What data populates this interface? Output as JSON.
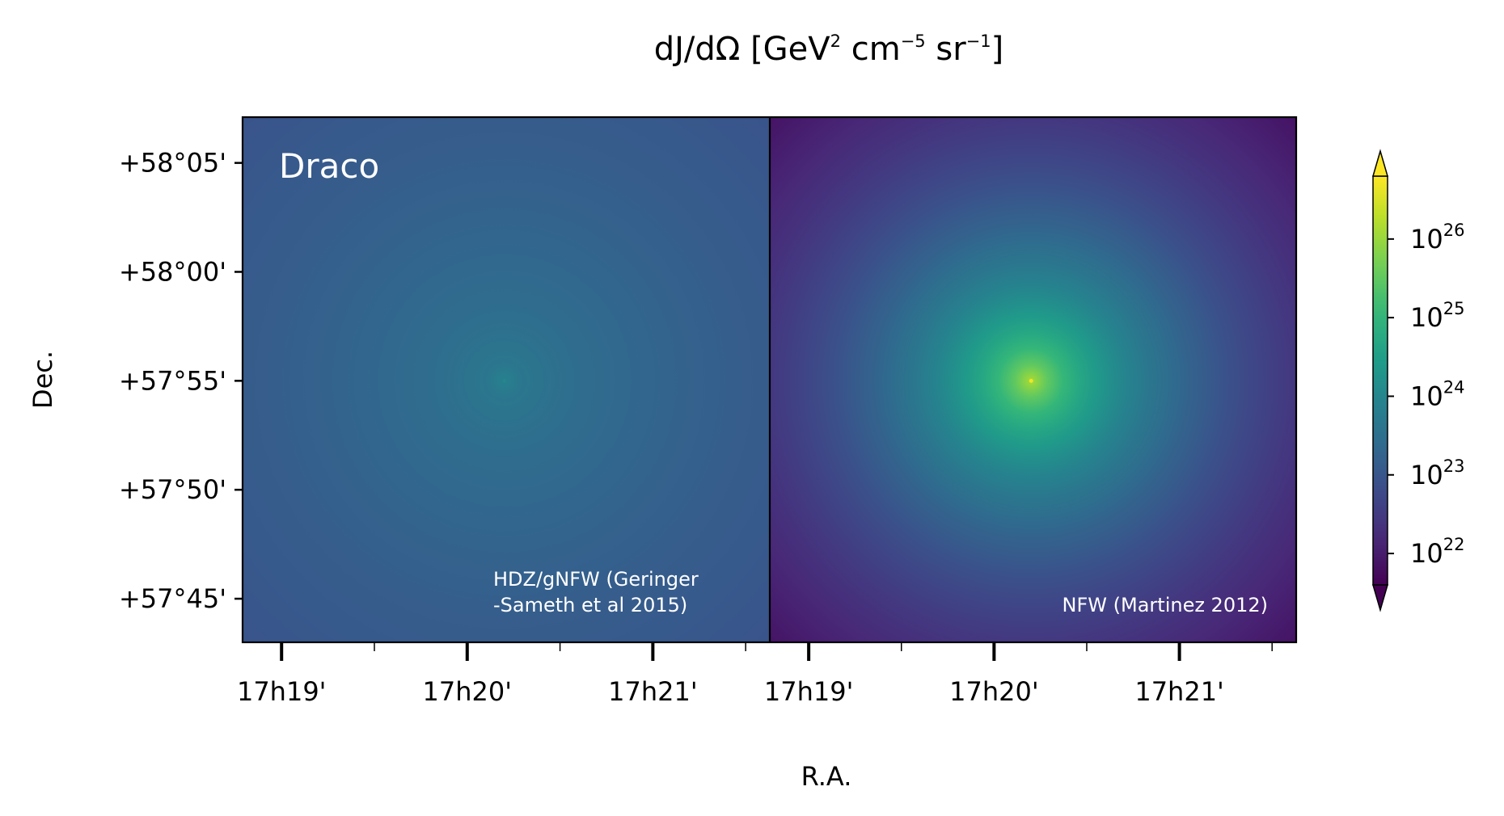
{
  "chart_data": {
    "type": "heatmap",
    "title": {
      "main": "dJ/dΩ  [GeV",
      "sup1": "2",
      "mid": " cm",
      "sup2": "−5",
      "mid2": " sr",
      "sup3": "−1",
      "end": "]"
    },
    "xlabel": "R.A.",
    "ylabel": "Dec.",
    "colormap": "viridis",
    "color_scale": "log",
    "colorbar": {
      "range_log10": [
        21.6,
        26.8
      ],
      "extend": "both",
      "ticks": [
        {
          "log10": 22,
          "base": "10",
          "exp": "22"
        },
        {
          "log10": 23,
          "base": "10",
          "exp": "23"
        },
        {
          "log10": 24,
          "base": "10",
          "exp": "24"
        },
        {
          "log10": 25,
          "base": "10",
          "exp": "25"
        },
        {
          "log10": 26,
          "base": "10",
          "exp": "26"
        }
      ]
    },
    "y_ticks_arcmin": [
      {
        "value": 3485,
        "label": "+58$^\\circ$05'"
      },
      {
        "value": 3480,
        "label": "+58$^\\circ$00'"
      },
      {
        "value": 3475,
        "label": "+57$^\\circ$55'"
      },
      {
        "value": 3470,
        "label": "+57$^\\circ$50'"
      },
      {
        "value": 3465,
        "label": "+57$^\\circ$45'"
      }
    ],
    "y_tick_text": [
      "+58°05'",
      "+58°00'",
      "+57°55'",
      "+57°50'",
      "+57°45'"
    ],
    "ylim_arcmin": [
      3463.0,
      3487.1
    ],
    "x_ticks_min": [
      {
        "value": 1039,
        "label": "17h19'"
      },
      {
        "value": 1040,
        "label": "17h20'"
      },
      {
        "value": 1041,
        "label": "17h21'"
      }
    ],
    "x_minor_ticks_min": [
      1039.5,
      1040.5,
      1041.5
    ],
    "xlim_min": [
      1038.79,
      1041.63
    ],
    "panels": [
      {
        "name": "Draco",
        "annotation_lines": [
          "HDZ/gNFW (Geringer",
          "-Sameth et al 2015)"
        ],
        "center": {
          "ra_min": 1040.2,
          "dec_arcmin": 3475.0
        },
        "peak_log10": 23.9,
        "background_log10": 22.95,
        "model": "cored"
      },
      {
        "name": "",
        "annotation_lines": [
          "NFW (Martinez 2012)"
        ],
        "center": {
          "ra_min": 1040.2,
          "dec_arcmin": 3475.0
        },
        "peak_log10": 26.1,
        "background_log10": 21.8,
        "model": "cusp"
      }
    ]
  }
}
